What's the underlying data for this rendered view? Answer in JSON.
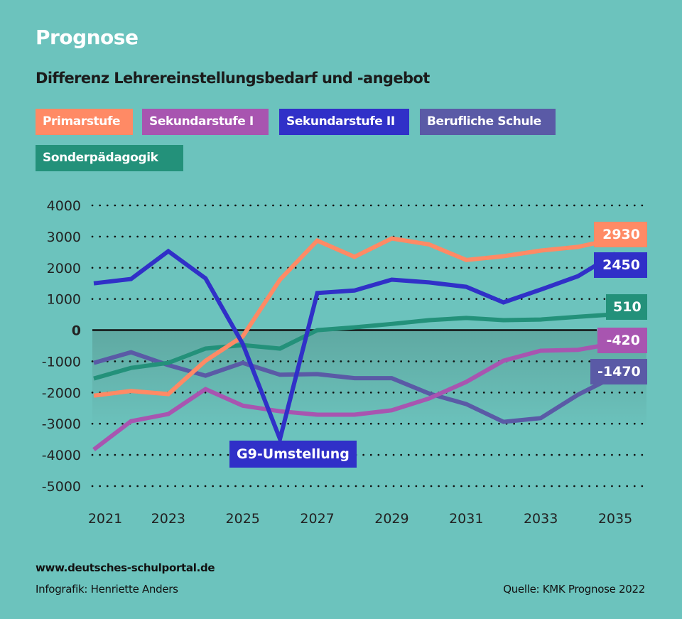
{
  "header": {
    "title": "Prognose",
    "subtitle": "Differenz Lehrereinstellungsbedarf und -angebot"
  },
  "legend": [
    {
      "label": "Primarstufe",
      "color": "#ff8a65"
    },
    {
      "label": "Sekundarstufe I",
      "color": "#a855b0"
    },
    {
      "label": "Sekundarstufe II",
      "color": "#3030c8"
    },
    {
      "label": "Berufliche Schule",
      "color": "#5a5aa6"
    },
    {
      "label": "Sonderpädagogik",
      "color": "#23917a"
    }
  ],
  "annotation": {
    "label": "G9-Umstellung",
    "year": 2026,
    "series": "Sekundarstufe II"
  },
  "footer": {
    "url": "www.deutsches-schulportal.de",
    "credit": "Infografik: Henriette Anders",
    "source": "Quelle: KMK Prognose 2022"
  },
  "colors": {
    "background": "#6cc3bd",
    "negative_band": "#62ada6",
    "zero_line": "#111111"
  },
  "chart_data": {
    "type": "line",
    "title": "Differenz Lehrereinstellungsbedarf und -angebot",
    "xlabel": "",
    "ylabel": "",
    "x": [
      2021,
      2022,
      2023,
      2024,
      2025,
      2026,
      2027,
      2028,
      2029,
      2030,
      2031,
      2032,
      2033,
      2034,
      2035
    ],
    "x_tick_labels": [
      "2021",
      "2023",
      "2025",
      "2027",
      "2029",
      "2031",
      "2033",
      "2035"
    ],
    "y_ticks": [
      4000,
      3000,
      2000,
      1000,
      0,
      -1000,
      -2000,
      -3000,
      -4000,
      -5000
    ],
    "y_tick_labels": [
      "4000",
      "3000",
      "2000",
      "1000",
      "0",
      "-1000",
      "-2000",
      "-3000",
      "-4000",
      "-5000"
    ],
    "ylim": [
      -5000,
      4000
    ],
    "grid": "dotted-horizontal",
    "legend_position": "top",
    "series": [
      {
        "name": "Primarstufe",
        "color": "#ff8a65",
        "end_label": "2930",
        "values": [
          -2100,
          -1950,
          -2050,
          -980,
          -200,
          1620,
          2870,
          2350,
          2940,
          2750,
          2250,
          2370,
          2550,
          2670,
          2930
        ]
      },
      {
        "name": "Sekundarstufe II",
        "color": "#3030c8",
        "end_label": "2450",
        "values": [
          1500,
          1640,
          2530,
          1660,
          -440,
          -3490,
          1190,
          1270,
          1620,
          1530,
          1390,
          890,
          1300,
          1730,
          2450
        ]
      },
      {
        "name": "Sonderpädagogik",
        "color": "#23917a",
        "end_label": "510",
        "values": [
          -1550,
          -1210,
          -1050,
          -590,
          -480,
          -590,
          0,
          90,
          200,
          320,
          390,
          320,
          340,
          430,
          510
        ]
      },
      {
        "name": "Sekundarstufe I",
        "color": "#a855b0",
        "end_label": "-420",
        "values": [
          -3830,
          -2920,
          -2690,
          -1890,
          -2420,
          -2600,
          -2710,
          -2710,
          -2570,
          -2190,
          -1660,
          -980,
          -660,
          -630,
          -420
        ]
      },
      {
        "name": "Berufliche Schule",
        "color": "#5a5aa6",
        "end_label": "-1470",
        "values": [
          -1050,
          -710,
          -1120,
          -1460,
          -1050,
          -1430,
          -1410,
          -1540,
          -1540,
          -2030,
          -2370,
          -2940,
          -2820,
          -2070,
          -1470
        ]
      }
    ]
  }
}
